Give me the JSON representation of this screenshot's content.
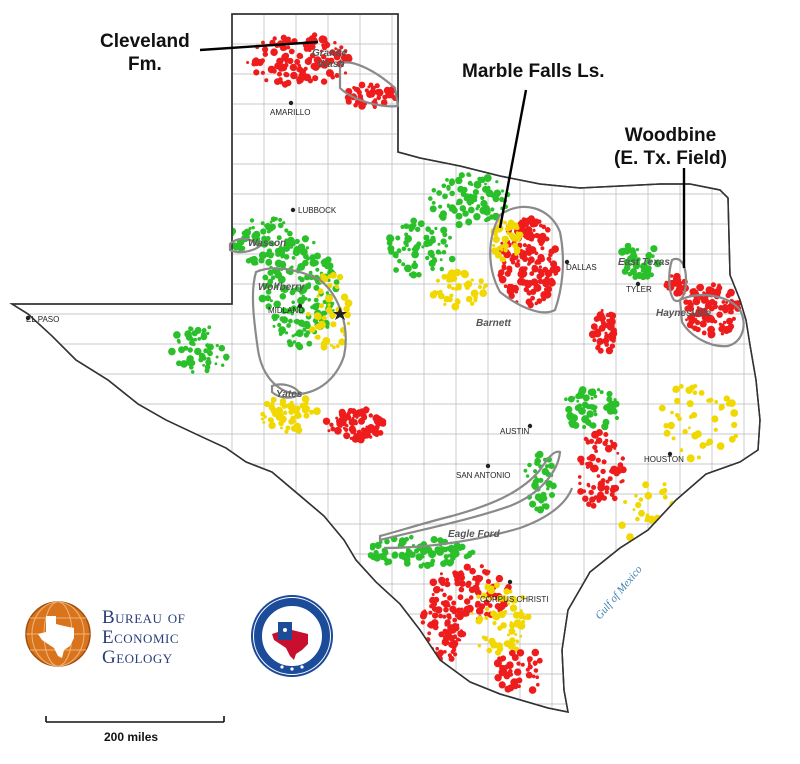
{
  "callouts": {
    "cleveland": [
      "Cleveland",
      "Fm."
    ],
    "marble_falls": "Marble Falls Ls.",
    "woodbine": [
      "Woodbine",
      "(E. Tx. Field)"
    ]
  },
  "cities": {
    "amarillo": "AMARILLO",
    "lubbock": "LUBBOCK",
    "dallas": "DALLAS",
    "tyler": "TYLER",
    "el_paso": "EL PASO",
    "midland": "MIDLAND",
    "austin": "AUSTIN",
    "houston": "HOUSTON",
    "san_antonio": "SAN ANTONIO",
    "corpus_christi": "CORPUS CHRISTI"
  },
  "plays": {
    "granite_wash": [
      "Granite",
      "Wash"
    ],
    "wasson": "Wasson",
    "wolfberry": "Wolfberry",
    "yates": "Yates",
    "barnett": "Barnett",
    "east_texas": "East Texas",
    "haynesville": "Haynesville",
    "eagle_ford": "Eagle Ford"
  },
  "water": {
    "gulf": "Gulf of Mexico"
  },
  "logos": {
    "beg_lines": [
      "Bureau of",
      "Economic",
      "Geology"
    ],
    "rrc_ring": "RAILROAD COMMISSION OF TEXAS"
  },
  "scale": {
    "label": "200 miles"
  },
  "colors": {
    "oil_wells": "#2bc02b",
    "gas_wells": "#ee1c1c",
    "mixed_wells": "#f0d800",
    "play_outline": "#8a8a8a",
    "beg_logo": "#d9741c",
    "rrc_blue": "#1c4b9a"
  }
}
